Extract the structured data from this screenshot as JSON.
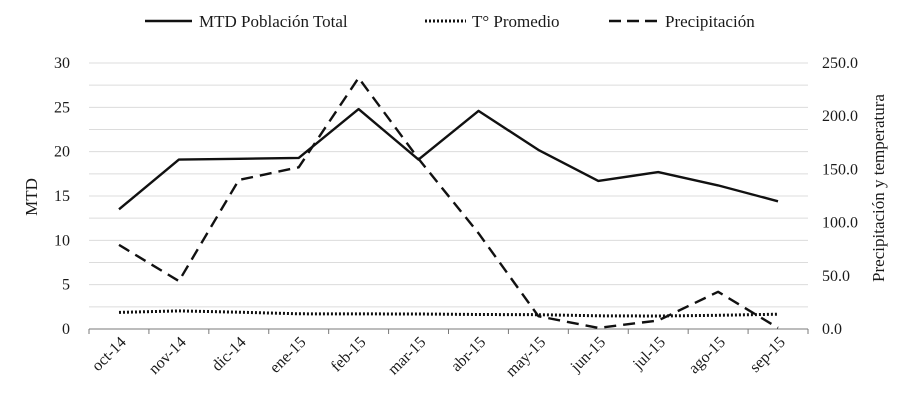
{
  "chart_data": {
    "type": "line",
    "categories": [
      "oct-14",
      "nov-14",
      "dic-14",
      "ene-15",
      "feb-15",
      "mar-15",
      "abr-15",
      "may-15",
      "jun-15",
      "jul-15",
      "ago-15",
      "sep-15"
    ],
    "series": [
      {
        "name": "MTD Población Total",
        "axis": "left",
        "style": "solid",
        "color": "#111111",
        "values": [
          13.5,
          19.1,
          19.2,
          19.3,
          24.8,
          19.1,
          24.6,
          20.2,
          16.7,
          17.7,
          16.2,
          14.4
        ]
      },
      {
        "name": "T° Promedio",
        "axis": "right",
        "style": "dotted",
        "color": "#111111",
        "values": [
          15.6,
          17.0,
          15.8,
          14.3,
          14.2,
          14.1,
          13.6,
          13.4,
          12.4,
          12.2,
          12.9,
          13.9
        ]
      },
      {
        "name": "Precipitación",
        "axis": "right",
        "style": "dashed",
        "color": "#111111",
        "values": [
          79,
          45,
          140,
          152,
          236,
          160,
          90,
          12,
          1,
          8,
          35,
          1
        ]
      }
    ],
    "ylabel": "MTD",
    "y2label": "Precipitación y temperatura",
    "ylim": [
      0,
      30
    ],
    "y2lim": [
      0,
      250
    ],
    "yticks": [
      "0",
      "5",
      "10",
      "15",
      "20",
      "25",
      "30"
    ],
    "y2ticks": [
      "0.0",
      "50.0",
      "100.0",
      "150.0",
      "200.0",
      "250.0"
    ],
    "grid": true,
    "legend_position": "top"
  }
}
